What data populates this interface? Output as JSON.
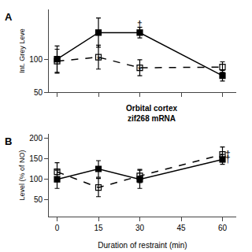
{
  "chart_data": [
    {
      "type": "line",
      "title": "A",
      "x": [
        0,
        15,
        30,
        60
      ],
      "xlim": [
        -3,
        65
      ],
      "xticks": [
        0,
        15,
        30,
        45,
        60
      ],
      "ylim": [
        50,
        175
      ],
      "yticks": [
        50,
        100
      ],
      "ylabel": "Int. Grey Leve",
      "tick_labels": "y",
      "grid": false,
      "series": [
        {
          "values": [
            100,
            140,
            140,
            75
          ],
          "errors": [
            20,
            22,
            8,
            8
          ],
          "color": "#000000",
          "line_style": "solid",
          "marker": "square"
        },
        {
          "values": [
            97,
            103,
            87,
            88
          ],
          "errors": [
            18,
            18,
            12,
            8
          ],
          "color": "#000000",
          "line_style": "dashed",
          "marker": "square-open"
        }
      ],
      "annotations": [
        {
          "text": "*",
          "x": 15,
          "y": 99
        },
        {
          "text": "*",
          "x": 30,
          "y": 83
        },
        {
          "text": "†",
          "x": 30,
          "y": 152
        }
      ]
    },
    {
      "type": "line",
      "title": "B",
      "subtitle": "Orbital cortex\nzif268 mRNA",
      "x": [
        0,
        15,
        30,
        60
      ],
      "xlim": [
        -3,
        65
      ],
      "xticks": [
        0,
        15,
        30,
        45,
        60
      ],
      "ylim": [
        10,
        210
      ],
      "yticks": [
        50,
        100,
        150,
        200
      ],
      "xlabel": "Duration of restraint (min)",
      "ylabel": "Level (% of NO)",
      "grid": false,
      "series": [
        {
          "values": [
            100,
            125,
            100,
            148
          ],
          "errors": [
            22,
            20,
            22,
            12
          ],
          "color": "#000000",
          "line_style": "solid",
          "marker": "square"
        },
        {
          "values": [
            118,
            80,
            108,
            160
          ],
          "errors": [
            22,
            22,
            16,
            18
          ],
          "color": "#000000",
          "line_style": "dashed",
          "marker": "square-open"
        }
      ],
      "annotations": [
        {
          "text": "†",
          "x": 62,
          "y": 149
        },
        {
          "text": "†",
          "x": 62,
          "y": 161
        }
      ]
    }
  ]
}
